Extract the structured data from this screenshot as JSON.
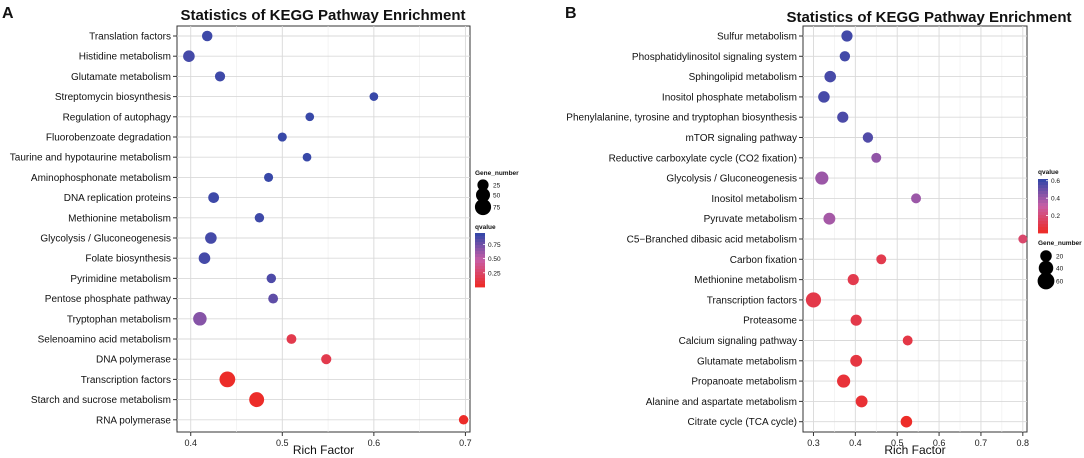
{
  "chart_data": [
    {
      "panel_label": "A",
      "type": "scatter",
      "title": "Statistics of KEGG Pathway Enrichment",
      "xlabel": "Rich Factor",
      "ylabel": "",
      "xlim": [
        0.385,
        0.705
      ],
      "xticks": [
        0.4,
        0.5,
        0.6,
        0.7
      ],
      "xtick_labels": [
        "0.4",
        "0.5",
        "0.6",
        "0.7"
      ],
      "grid": true,
      "legend_position": "right",
      "categories": [
        "Translation factors",
        "Histidine metabolism",
        "Glutamate metabolism",
        "Streptomycin biosynthesis",
        "Regulation of autophagy",
        "Fluorobenzoate degradation",
        "Taurine and hypotaurine metabolism",
        "Aminophosphonate metabolism",
        "DNA replication proteins",
        "Methionine metabolism",
        "Glycolysis / Gluconeogenesis",
        "Folate biosynthesis",
        "Pyrimidine metabolism",
        "Pentose phosphate pathway",
        "Tryptophan metabolism",
        "Selenoamino acid metabolism",
        "DNA polymerase",
        "Transcription factors",
        "Starch and sucrose metabolism",
        "RNA polymerase"
      ],
      "rich_factor": [
        0.418,
        0.398,
        0.432,
        0.6,
        0.53,
        0.5,
        0.527,
        0.485,
        0.425,
        0.475,
        0.422,
        0.415,
        0.488,
        0.49,
        0.41,
        0.51,
        0.548,
        0.44,
        0.472,
        0.698
      ],
      "gene_number": [
        20,
        28,
        18,
        10,
        10,
        12,
        10,
        12,
        22,
        14,
        28,
        28,
        14,
        16,
        45,
        16,
        18,
        70,
        60,
        14
      ],
      "qvalue": [
        0.9,
        0.88,
        0.9,
        0.92,
        0.92,
        0.92,
        0.92,
        0.92,
        0.9,
        0.9,
        0.88,
        0.88,
        0.85,
        0.8,
        0.68,
        0.15,
        0.15,
        0.02,
        0.02,
        0.02
      ],
      "size_legend": {
        "title": "Gene_number",
        "values": [
          25,
          50,
          75
        ],
        "labels": [
          "25",
          "50",
          "75"
        ]
      },
      "color_legend": {
        "title": "qvalue",
        "ticks": [
          0.75,
          0.5,
          0.25
        ],
        "labels": [
          "0.75",
          "0.50",
          "0.25"
        ],
        "range": [
          0.0,
          0.95
        ],
        "low_color": "#ee2a24",
        "mid_color": "#c85ea6",
        "high_color": "#2e46a8"
      }
    },
    {
      "panel_label": "B",
      "type": "scatter",
      "title": "Statistics of KEGG Pathway Enrichment",
      "xlabel": "Rich Factor",
      "ylabel": "",
      "xlim": [
        0.275,
        0.81
      ],
      "xticks": [
        0.3,
        0.4,
        0.5,
        0.6,
        0.7,
        0.8
      ],
      "xtick_labels": [
        "0.3",
        "0.4",
        "0.5",
        "0.6",
        "0.7",
        "0.8"
      ],
      "grid": true,
      "legend_position": "right",
      "categories": [
        "Sulfur metabolism",
        "Phosphatidylinositol signaling system",
        "Sphingolipid metabolism",
        "Inositol phosphate metabolism",
        "Phenylalanine, tyrosine and tryptophan biosynthesis",
        "mTOR signaling pathway",
        "Reductive carboxylate cycle (CO2 fixation)",
        "Glycolysis / Gluconeogenesis",
        "Inositol metabolism",
        "Pyruvate metabolism",
        "C5−Branched dibasic acid metabolism",
        "Carbon fixation",
        "Methionine metabolism",
        "Transcription factors",
        "Proteasome",
        "Calcium signaling pathway",
        "Glutamate metabolism",
        "Propanoate metabolism",
        "Alanine and aspartate metabolism",
        "Citrate cycle (TCA cycle)"
      ],
      "rich_factor": [
        0.38,
        0.375,
        0.34,
        0.325,
        0.37,
        0.43,
        0.45,
        0.32,
        0.545,
        0.338,
        0.8,
        0.462,
        0.395,
        0.3,
        0.402,
        0.525,
        0.402,
        0.372,
        0.415,
        0.522
      ],
      "gene_number": [
        18,
        14,
        20,
        20,
        18,
        14,
        12,
        30,
        12,
        22,
        8,
        12,
        18,
        45,
        18,
        12,
        22,
        30,
        22,
        20
      ],
      "qvalue": [
        0.58,
        0.58,
        0.57,
        0.57,
        0.56,
        0.55,
        0.42,
        0.4,
        0.4,
        0.38,
        0.17,
        0.1,
        0.1,
        0.09,
        0.09,
        0.08,
        0.07,
        0.05,
        0.04,
        0.01
      ],
      "size_legend": {
        "title": "Gene_number",
        "values": [
          20,
          40,
          60
        ],
        "labels": [
          "20",
          "40",
          "60"
        ]
      },
      "color_legend": {
        "title": "qvalue",
        "ticks": [
          0.6,
          0.4,
          0.2
        ],
        "labels": [
          "0.6",
          "0.4",
          "0.2"
        ],
        "range": [
          0.0,
          0.62
        ],
        "low_color": "#ee2a24",
        "mid_color": "#c85ea6",
        "high_color": "#2e46a8"
      }
    }
  ]
}
